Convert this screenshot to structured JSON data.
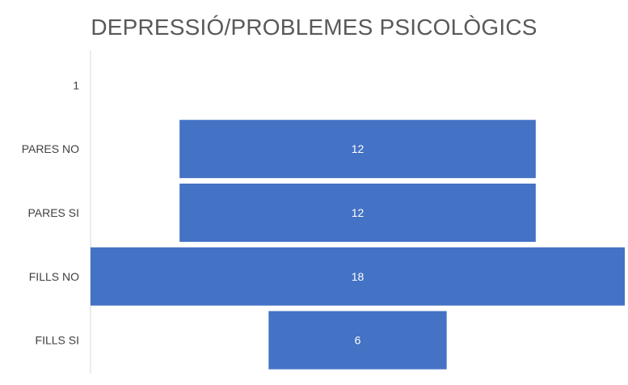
{
  "chart_data": {
    "type": "bar",
    "orientation": "horizontal",
    "layout": "funnel",
    "title": "DEPRESSIÓ/PROBLEMES PSICOLÒGICS",
    "categories": [
      "1",
      "PARES NO",
      "PARES SI",
      "FILLS NO",
      "FILLS SI"
    ],
    "values": [
      null,
      12,
      12,
      18,
      6
    ],
    "data_labels": [
      "",
      "12",
      "12",
      "18",
      "6"
    ],
    "xlim": [
      0,
      18
    ],
    "grid": false,
    "legend": "none",
    "colors": {
      "bar": "#4472C4",
      "axis": "#D9D9D9",
      "category_label": "#404040",
      "data_label": "#FFFFFF",
      "title": "#595959"
    }
  }
}
